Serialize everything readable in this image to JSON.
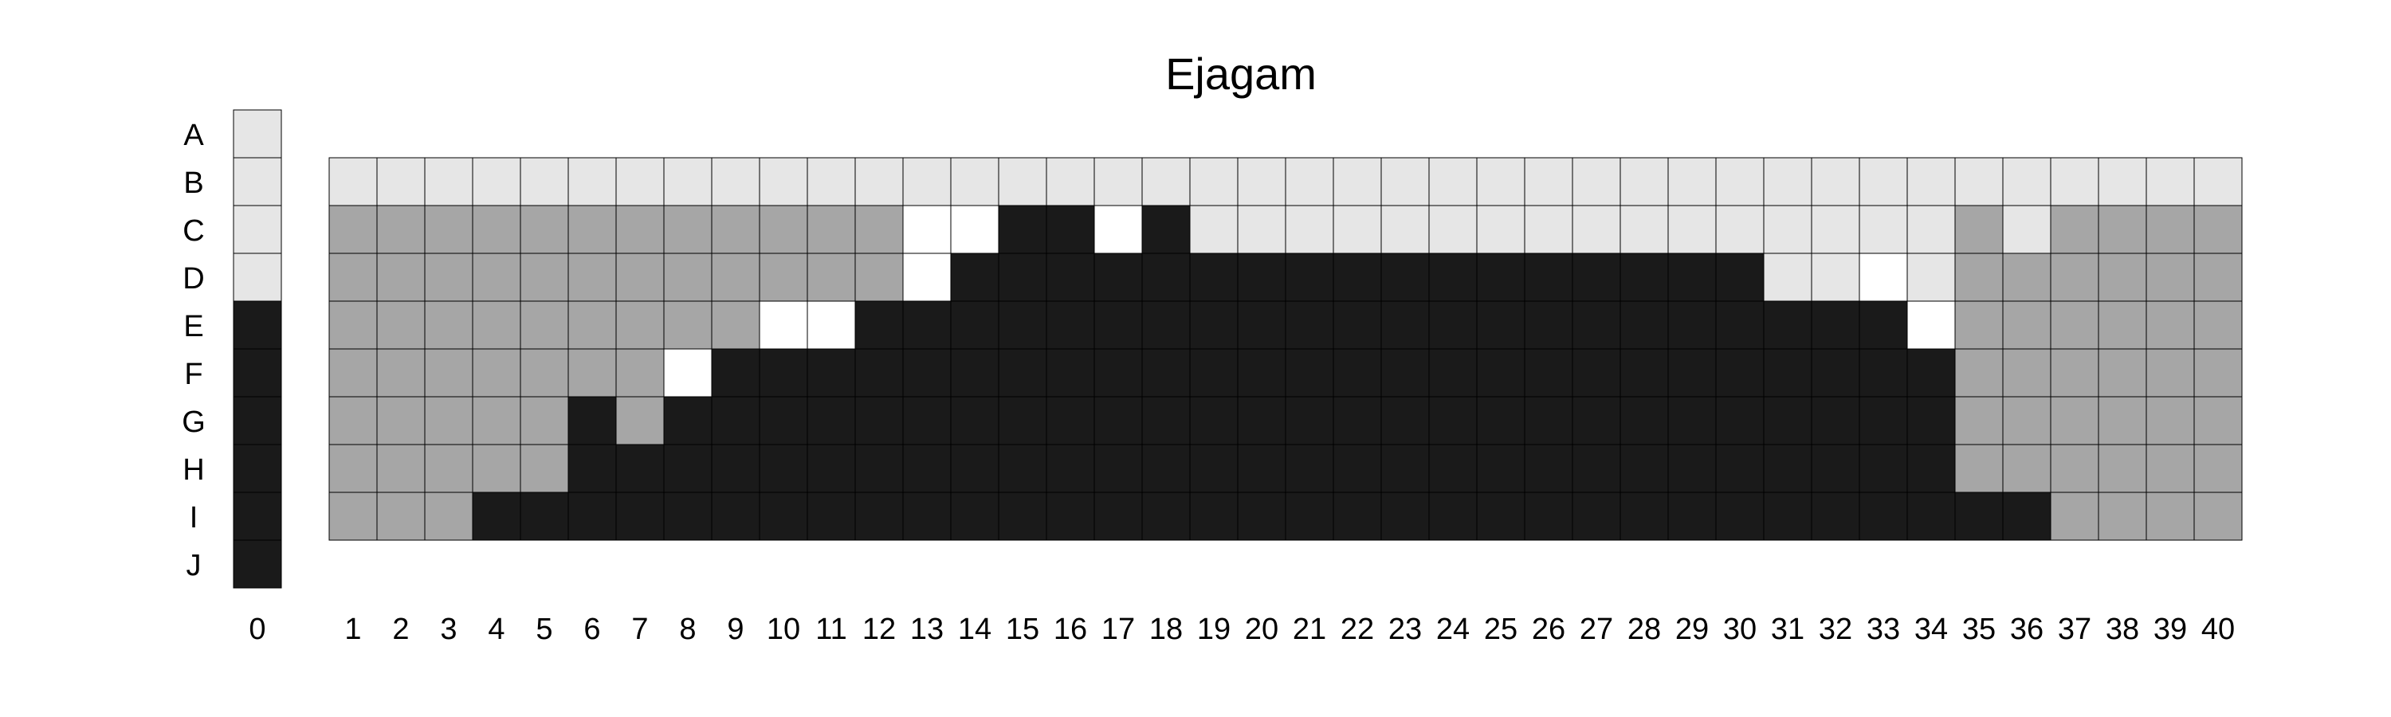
{
  "chart_data": {
    "type": "heatmap",
    "title": "Ejagam",
    "rows": [
      "A",
      "B",
      "C",
      "D",
      "E",
      "F",
      "G",
      "H",
      "I",
      "J"
    ],
    "columns": [
      "1",
      "2",
      "3",
      "4",
      "5",
      "6",
      "7",
      "8",
      "9",
      "10",
      "11",
      "12",
      "13",
      "14",
      "15",
      "16",
      "17",
      "18",
      "19",
      "20",
      "21",
      "22",
      "23",
      "24",
      "25",
      "26",
      "27",
      "28",
      "29",
      "30",
      "31",
      "32",
      "33",
      "34",
      "35",
      "36",
      "37",
      "38",
      "39",
      "40"
    ],
    "reference_column": {
      "label": "0",
      "values": [
        "light",
        "light",
        "light",
        "light",
        "black",
        "black",
        "black",
        "black",
        "black",
        "black"
      ]
    },
    "grid_rows": [
      "B",
      "C",
      "D",
      "E",
      "F",
      "G",
      "H",
      "I"
    ],
    "colors": {
      "light": "#e6e6e6",
      "gray": "#a6a6a6",
      "black": "#1a1a1a",
      "white": "#ffffff"
    },
    "matrix": [
      [
        "light",
        "light",
        "light",
        "light",
        "light",
        "light",
        "light",
        "light",
        "light",
        "light",
        "light",
        "light",
        "light",
        "light",
        "light",
        "light",
        "light",
        "light",
        "light",
        "light",
        "light",
        "light",
        "light",
        "light",
        "light",
        "light",
        "light",
        "light",
        "light",
        "light",
        "light",
        "light",
        "light",
        "light",
        "light",
        "light",
        "light",
        "light",
        "light",
        "light"
      ],
      [
        "gray",
        "gray",
        "gray",
        "gray",
        "gray",
        "gray",
        "gray",
        "gray",
        "gray",
        "gray",
        "gray",
        "gray",
        "white",
        "white",
        "black",
        "black",
        "white",
        "black",
        "light",
        "light",
        "light",
        "light",
        "light",
        "light",
        "light",
        "light",
        "light",
        "light",
        "light",
        "light",
        "light",
        "light",
        "light",
        "light",
        "gray",
        "light",
        "gray",
        "gray",
        "gray",
        "gray"
      ],
      [
        "gray",
        "gray",
        "gray",
        "gray",
        "gray",
        "gray",
        "gray",
        "gray",
        "gray",
        "gray",
        "gray",
        "gray",
        "white",
        "black",
        "black",
        "black",
        "black",
        "black",
        "black",
        "black",
        "black",
        "black",
        "black",
        "black",
        "black",
        "black",
        "black",
        "black",
        "black",
        "black",
        "light",
        "light",
        "white",
        "light",
        "gray",
        "gray",
        "gray",
        "gray",
        "gray",
        "gray"
      ],
      [
        "gray",
        "gray",
        "gray",
        "gray",
        "gray",
        "gray",
        "gray",
        "gray",
        "gray",
        "white",
        "white",
        "black",
        "black",
        "black",
        "black",
        "black",
        "black",
        "black",
        "black",
        "black",
        "black",
        "black",
        "black",
        "black",
        "black",
        "black",
        "black",
        "black",
        "black",
        "black",
        "black",
        "black",
        "black",
        "white",
        "gray",
        "gray",
        "gray",
        "gray",
        "gray",
        "gray"
      ],
      [
        "gray",
        "gray",
        "gray",
        "gray",
        "gray",
        "gray",
        "gray",
        "white",
        "black",
        "black",
        "black",
        "black",
        "black",
        "black",
        "black",
        "black",
        "black",
        "black",
        "black",
        "black",
        "black",
        "black",
        "black",
        "black",
        "black",
        "black",
        "black",
        "black",
        "black",
        "black",
        "black",
        "black",
        "black",
        "black",
        "gray",
        "gray",
        "gray",
        "gray",
        "gray",
        "gray"
      ],
      [
        "gray",
        "gray",
        "gray",
        "gray",
        "gray",
        "black",
        "gray",
        "black",
        "black",
        "black",
        "black",
        "black",
        "black",
        "black",
        "black",
        "black",
        "black",
        "black",
        "black",
        "black",
        "black",
        "black",
        "black",
        "black",
        "black",
        "black",
        "black",
        "black",
        "black",
        "black",
        "black",
        "black",
        "black",
        "black",
        "gray",
        "gray",
        "gray",
        "gray",
        "gray",
        "gray"
      ],
      [
        "gray",
        "gray",
        "gray",
        "gray",
        "gray",
        "black",
        "black",
        "black",
        "black",
        "black",
        "black",
        "black",
        "black",
        "black",
        "black",
        "black",
        "black",
        "black",
        "black",
        "black",
        "black",
        "black",
        "black",
        "black",
        "black",
        "black",
        "black",
        "black",
        "black",
        "black",
        "black",
        "black",
        "black",
        "black",
        "gray",
        "gray",
        "gray",
        "gray",
        "gray",
        "gray"
      ],
      [
        "gray",
        "gray",
        "gray",
        "black",
        "black",
        "black",
        "black",
        "black",
        "black",
        "black",
        "black",
        "black",
        "black",
        "black",
        "black",
        "black",
        "black",
        "black",
        "black",
        "black",
        "black",
        "black",
        "black",
        "black",
        "black",
        "black",
        "black",
        "black",
        "black",
        "black",
        "black",
        "black",
        "black",
        "black",
        "black",
        "black",
        "gray",
        "gray",
        "gray",
        "gray"
      ]
    ],
    "grid": true,
    "legend": "none"
  }
}
